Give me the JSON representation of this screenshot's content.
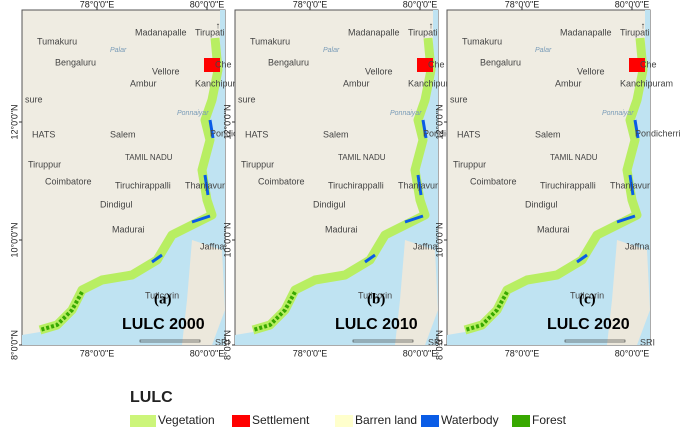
{
  "lon_labels": [
    "78°0'0\"E",
    "80°0'0\"E"
  ],
  "lat_labels": [
    "12°0'0\"N",
    "10°0'0\"N",
    "8°0'0\"N"
  ],
  "places": [
    "Tumakuru",
    "Madanapalle",
    "Tirupati",
    "Bengaluru",
    "Vellore",
    "Ambur",
    "Kanchipuram",
    "Che",
    "Salem",
    "Pondicherri",
    "TAMIL NADU",
    "Tiruppur",
    "Coimbatore",
    "Tiruchirappalli",
    "Thanjavur",
    "Dindigul",
    "Madurai",
    "Jaffna",
    "Tuticorin",
    "SRI",
    "HATS",
    "sure",
    "Palar",
    "Ponnaiyar"
  ],
  "panels": [
    {
      "letter": "(a)",
      "title": "LULC 2000"
    },
    {
      "letter": "(b)",
      "title": "LULC 2010"
    },
    {
      "letter": "(c)",
      "title": "LULC 2020"
    }
  ],
  "legend": {
    "title": "LULC",
    "items": [
      {
        "label": "Vegetation",
        "color": "#ccf57a"
      },
      {
        "label": "Settlement",
        "color": "#ff0000"
      },
      {
        "label": "Barren land",
        "color": "#ffffcc"
      },
      {
        "label": "Waterbody",
        "color": "#0a5ce6"
      },
      {
        "label": "Forest",
        "color": "#38a800"
      }
    ]
  }
}
